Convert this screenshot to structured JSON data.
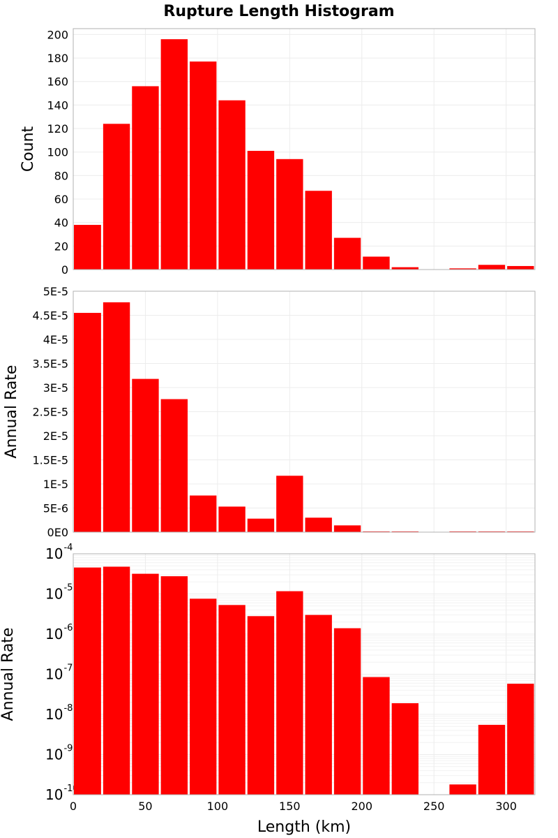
{
  "chart_data": {
    "type": "bar",
    "title": "Rupture Length Histogram",
    "xlabel": "Length (km)",
    "xlim": [
      0,
      320
    ],
    "bin_width": 20,
    "x_ticks": [
      "0",
      "50",
      "100",
      "150",
      "200",
      "250",
      "300"
    ],
    "x_tick_values": [
      0,
      50,
      100,
      150,
      200,
      250,
      300
    ],
    "bin_starts": [
      0,
      20,
      40,
      60,
      80,
      100,
      120,
      140,
      160,
      180,
      200,
      220,
      240,
      260,
      280,
      300
    ],
    "panels": [
      {
        "ylabel": "Count",
        "scale": "linear",
        "ylim": [
          0,
          205
        ],
        "y_tick_values": [
          0,
          20,
          40,
          60,
          80,
          100,
          120,
          140,
          160,
          180,
          200
        ],
        "y_ticks": [
          "0",
          "20",
          "40",
          "60",
          "80",
          "100",
          "120",
          "140",
          "160",
          "180",
          "200"
        ],
        "values": [
          38,
          124,
          156,
          196,
          177,
          144,
          101,
          94,
          67,
          27,
          11,
          2,
          0,
          1,
          4,
          3
        ]
      },
      {
        "ylabel": "Annual Rate",
        "scale": "linear",
        "ylim": [
          0,
          5e-05
        ],
        "y_tick_values": [
          0,
          5e-06,
          1e-05,
          1.5e-05,
          2e-05,
          2.5e-05,
          3e-05,
          3.5e-05,
          4e-05,
          4.5e-05,
          5e-05
        ],
        "y_ticks": [
          "0E0",
          "5E-6",
          "1E-5",
          "1.5E-5",
          "2E-5",
          "2.5E-5",
          "3E-5",
          "3.5E-5",
          "4E-5",
          "4.5E-5",
          "5E-5"
        ],
        "values": [
          4.55e-05,
          4.77e-05,
          3.18e-05,
          2.76e-05,
          7.6e-06,
          5.3e-06,
          2.8e-06,
          1.17e-05,
          3e-06,
          1.4e-06,
          1e-07,
          2e-08,
          0,
          2e-10,
          6e-09,
          6e-08
        ]
      },
      {
        "ylabel": "Annual Rate",
        "scale": "log",
        "ylim_exp": [
          -10,
          -4
        ],
        "y_tick_exps": [
          -10,
          -9,
          -8,
          -7,
          -6,
          -5,
          -4
        ],
        "y_tick_base": "10",
        "y_tick_sups": [
          "-10",
          "-9",
          "-8",
          "-7",
          "-6",
          "-5",
          "-4"
        ],
        "values": [
          4.55e-05,
          4.77e-05,
          3.18e-05,
          2.76e-05,
          7.6e-06,
          5.3e-06,
          2.8e-06,
          1.17e-05,
          3e-06,
          1.4e-06,
          8.5e-08,
          1.9e-08,
          0,
          1.8e-10,
          5.5e-09,
          5.8e-08
        ]
      }
    ],
    "grid": true,
    "colors": {
      "bar": "#ff0000",
      "frame": "#b0b0b0",
      "grid": "#ececec"
    }
  }
}
